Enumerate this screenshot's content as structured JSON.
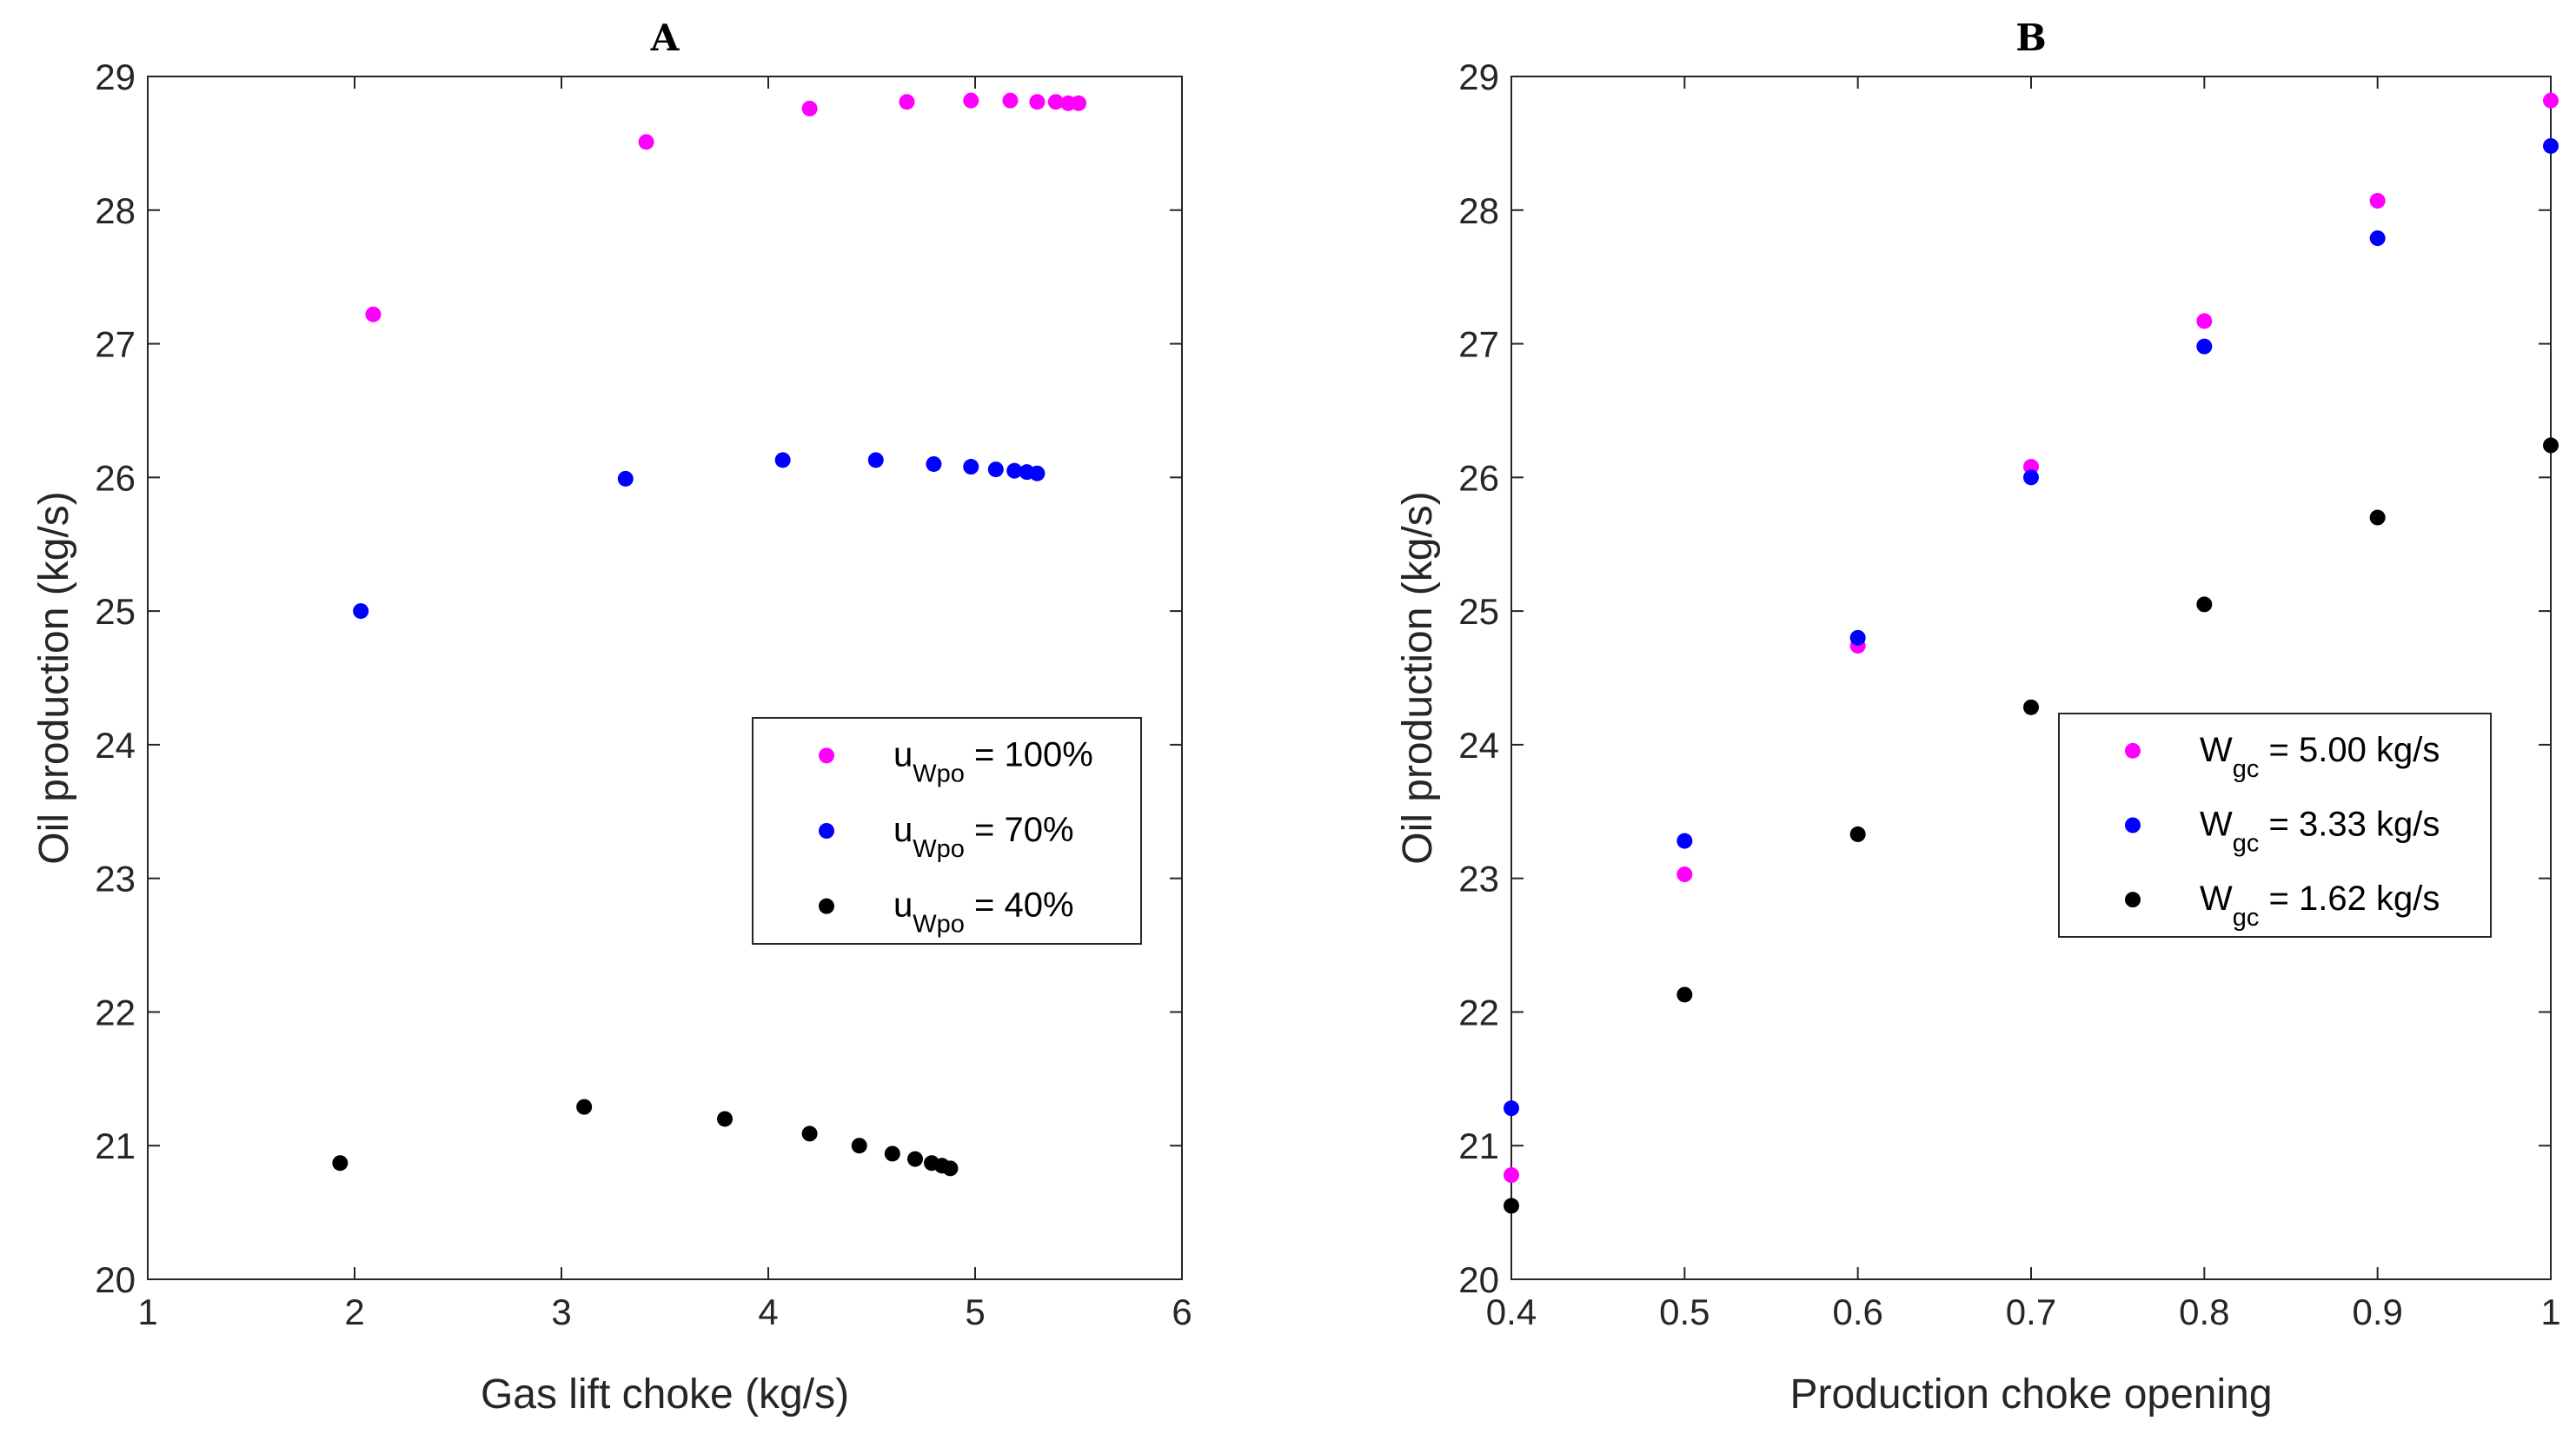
{
  "chart_data": [
    {
      "type": "scatter",
      "title": "A",
      "xlabel": "Gas lift choke (kg/s)",
      "ylabel": "Oil production (kg/s)",
      "xlim": [
        1,
        6
      ],
      "ylim": [
        20,
        29
      ],
      "xticks": [
        "1",
        "2",
        "3",
        "4",
        "5",
        "6"
      ],
      "yticks": [
        "20",
        "21",
        "22",
        "23",
        "24",
        "25",
        "26",
        "27",
        "28",
        "29"
      ],
      "grid": false,
      "legend_position": "right-middle",
      "series": [
        {
          "name": "u_Wpo = 100%",
          "name_main": "u",
          "name_sub": "Wpo",
          "name_rest": " = 100%",
          "color": "#ff00ff",
          "points": [
            [
              2.09,
              27.22
            ],
            [
              3.41,
              28.51
            ],
            [
              4.2,
              28.76
            ],
            [
              4.67,
              28.81
            ],
            [
              4.98,
              28.82
            ],
            [
              5.17,
              28.82
            ],
            [
              5.3,
              28.81
            ],
            [
              5.39,
              28.81
            ],
            [
              5.45,
              28.8
            ],
            [
              5.5,
              28.8
            ]
          ]
        },
        {
          "name": "u_Wpo = 70%",
          "name_main": "u",
          "name_sub": "Wpo",
          "name_rest": " = 70%",
          "color": "#0000ff",
          "points": [
            [
              2.03,
              25.0
            ],
            [
              3.31,
              25.99
            ],
            [
              4.07,
              26.13
            ],
            [
              4.52,
              26.13
            ],
            [
              4.8,
              26.1
            ],
            [
              4.98,
              26.08
            ],
            [
              5.1,
              26.06
            ],
            [
              5.19,
              26.05
            ],
            [
              5.25,
              26.04
            ],
            [
              5.3,
              26.03
            ]
          ]
        },
        {
          "name": "u_Wpo = 40%",
          "name_main": "u",
          "name_sub": "Wpo",
          "name_rest": " = 40%",
          "color": "#000000",
          "points": [
            [
              1.93,
              20.87
            ],
            [
              3.11,
              21.29
            ],
            [
              3.79,
              21.2
            ],
            [
              4.2,
              21.09
            ],
            [
              4.44,
              21.0
            ],
            [
              4.6,
              20.94
            ],
            [
              4.71,
              20.9
            ],
            [
              4.79,
              20.87
            ],
            [
              4.84,
              20.85
            ],
            [
              4.88,
              20.83
            ]
          ]
        }
      ]
    },
    {
      "type": "scatter",
      "title": "B",
      "xlabel": "Production choke opening",
      "ylabel": "Oil production (kg/s)",
      "xlim": [
        0.4,
        1
      ],
      "ylim": [
        20,
        29
      ],
      "xticks": [
        "0.4",
        "0.5",
        "0.6",
        "0.7",
        "0.8",
        "0.9",
        "1"
      ],
      "yticks": [
        "20",
        "21",
        "22",
        "23",
        "24",
        "25",
        "26",
        "27",
        "28",
        "29"
      ],
      "grid": false,
      "legend_position": "right-middle",
      "series": [
        {
          "name": "W_gc = 5.00 kg/s",
          "name_main": "W",
          "name_sub": "gc",
          "name_rest": " = 5.00 kg/s",
          "color": "#ff00ff",
          "points": [
            [
              0.4,
              20.78
            ],
            [
              0.5,
              23.03
            ],
            [
              0.6,
              24.74
            ],
            [
              0.7,
              26.08
            ],
            [
              0.8,
              27.17
            ],
            [
              0.9,
              28.07
            ],
            [
              1.0,
              28.82
            ]
          ]
        },
        {
          "name": "W_gc = 3.33 kg/s",
          "name_main": "W",
          "name_sub": "gc",
          "name_rest": " = 3.33 kg/s",
          "color": "#0000ff",
          "points": [
            [
              0.4,
              21.28
            ],
            [
              0.5,
              23.28
            ],
            [
              0.6,
              24.8
            ],
            [
              0.7,
              26.0
            ],
            [
              0.8,
              26.98
            ],
            [
              0.9,
              27.79
            ],
            [
              1.0,
              28.48
            ]
          ]
        },
        {
          "name": "W_gc = 1.62 kg/s",
          "name_main": "W",
          "name_sub": "gc",
          "name_rest": " = 1.62 kg/s",
          "color": "#000000",
          "points": [
            [
              0.4,
              20.55
            ],
            [
              0.5,
              22.13
            ],
            [
              0.6,
              23.33
            ],
            [
              0.7,
              24.28
            ],
            [
              0.8,
              25.05
            ],
            [
              0.9,
              25.7
            ],
            [
              1.0,
              26.24
            ]
          ]
        }
      ]
    }
  ]
}
